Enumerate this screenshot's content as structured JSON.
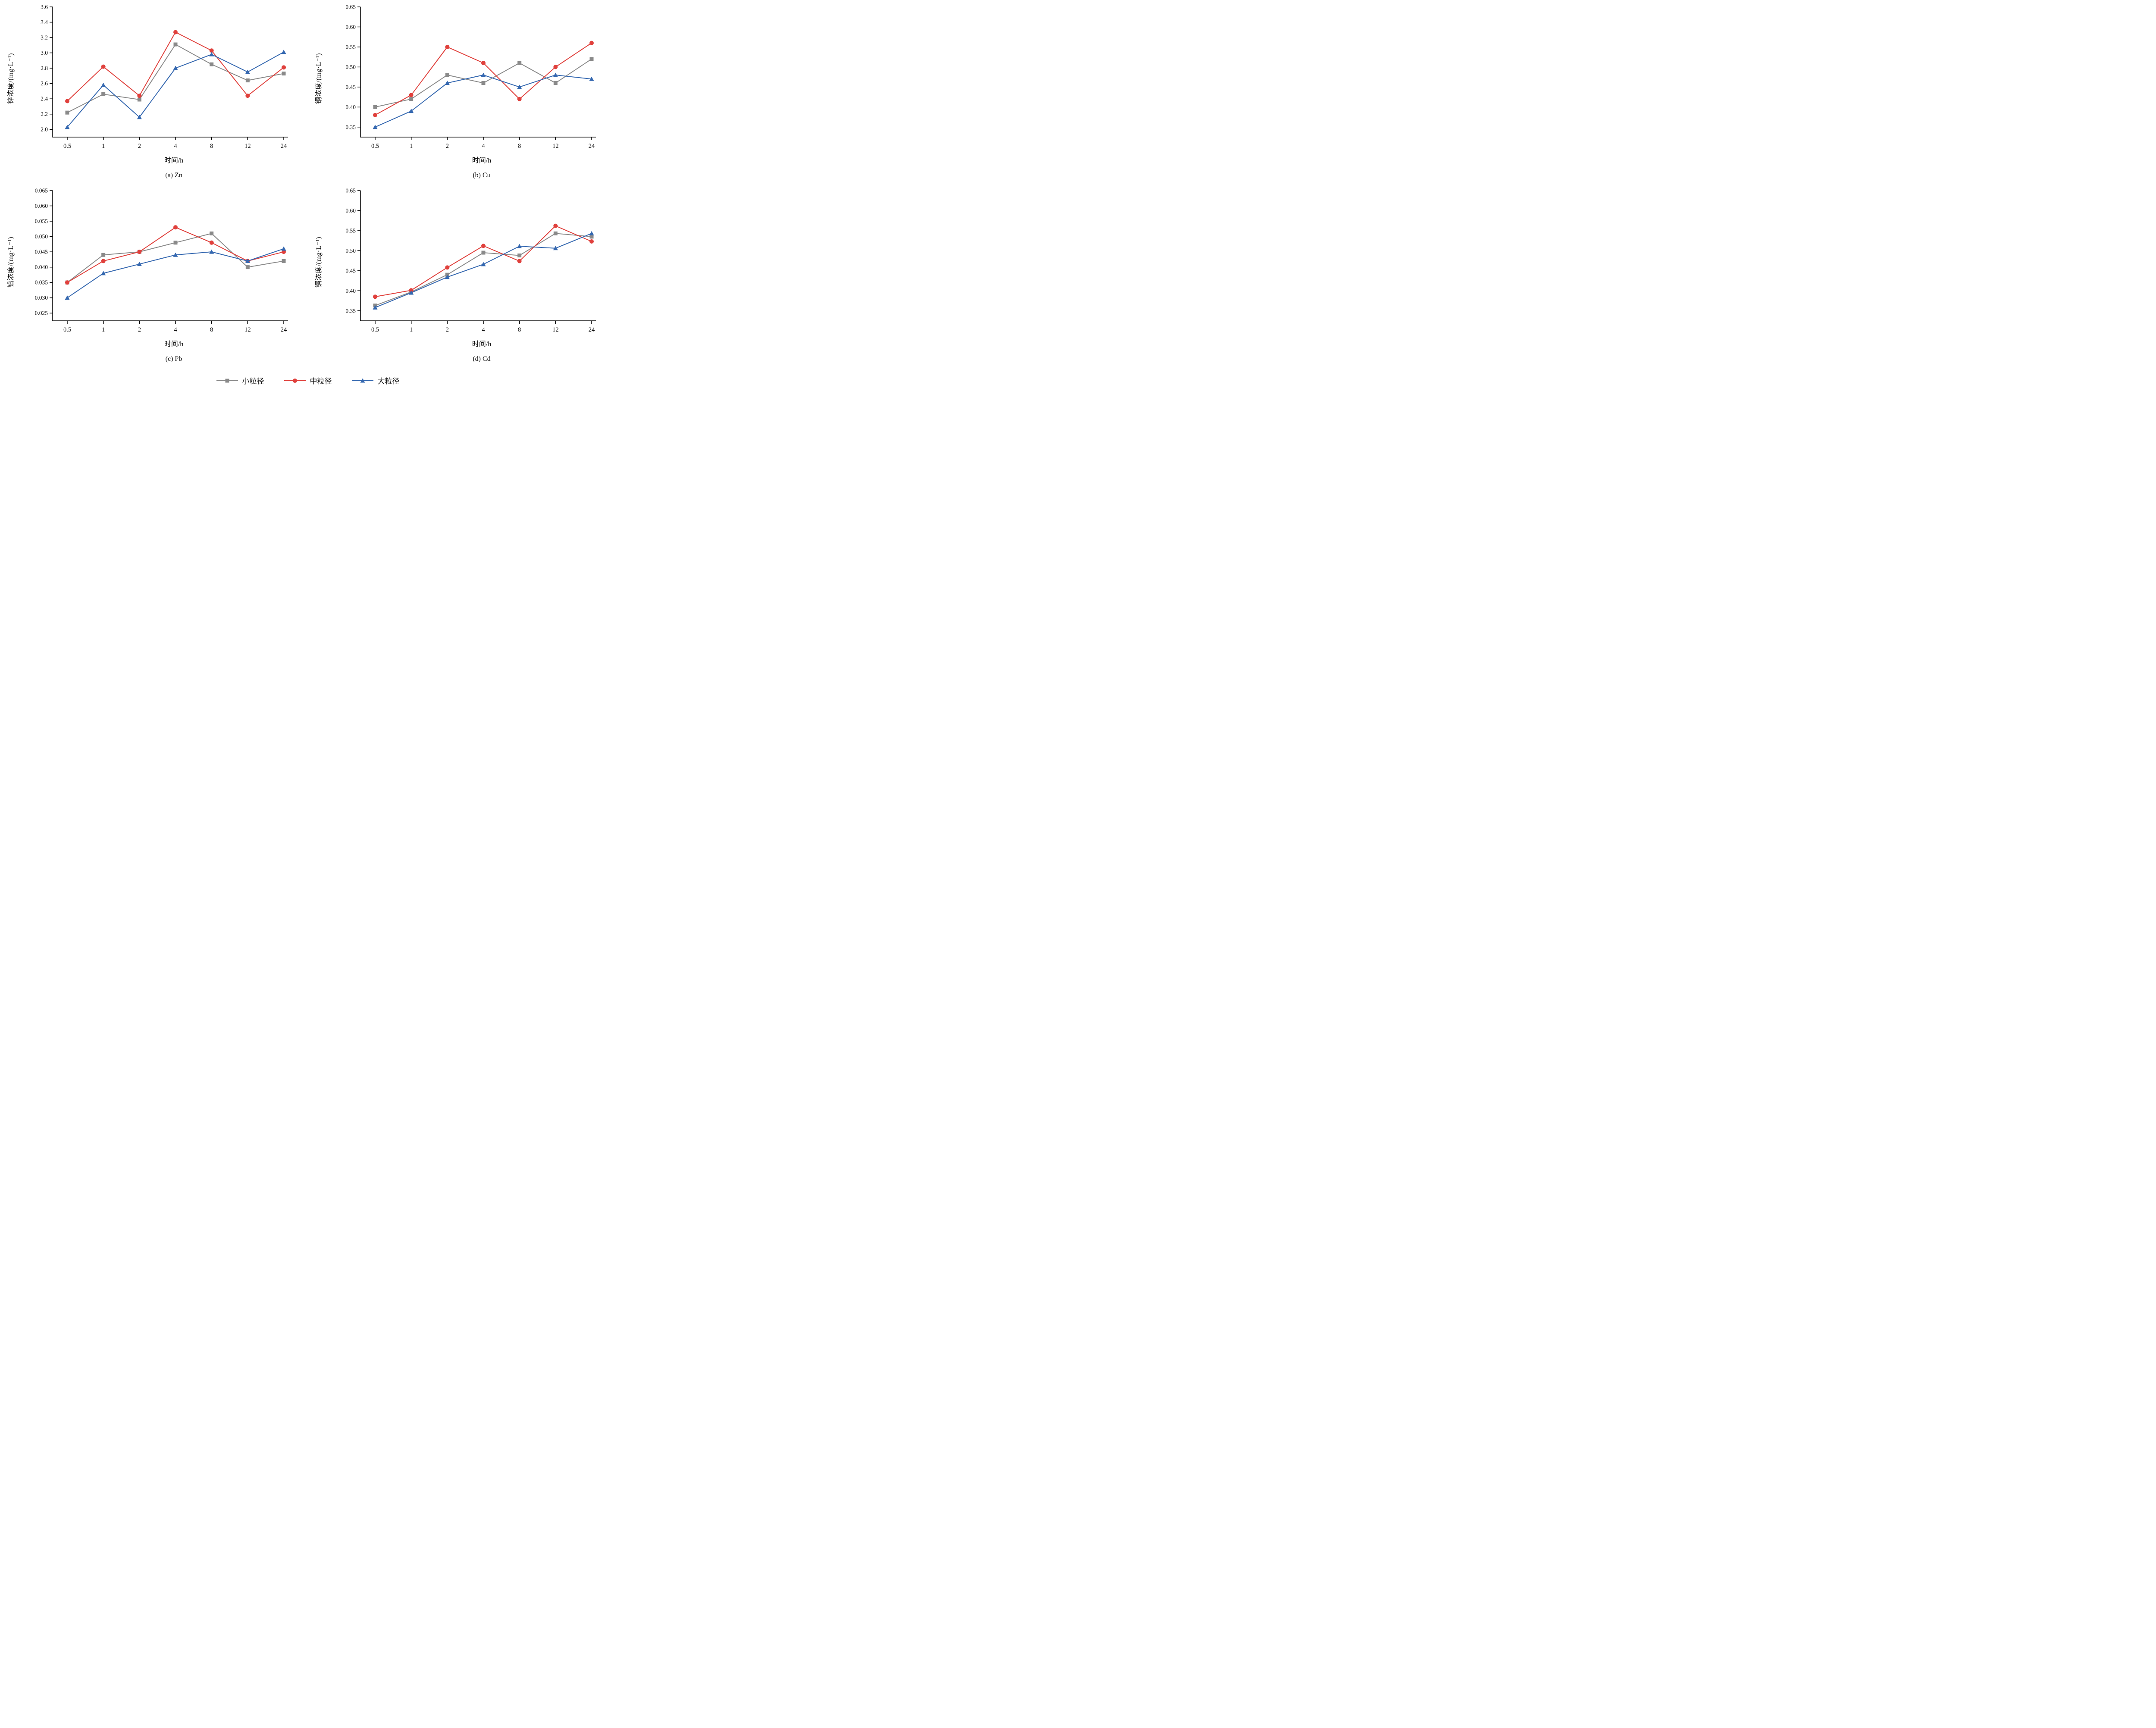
{
  "legend": {
    "items": [
      {
        "label": "小粒径",
        "color": "#8a8a8a",
        "marker": "square"
      },
      {
        "label": "中粒径",
        "color": "#e0403c",
        "marker": "circle"
      },
      {
        "label": "大粒径",
        "color": "#3568b0",
        "marker": "triangle"
      }
    ]
  },
  "chart_data": [
    {
      "type": "line",
      "caption": "(a) Zn",
      "xlabel": "时间/h",
      "ylabel": "锌浓度/(mg·L⁻¹)",
      "categories": [
        "0.5",
        "1",
        "2",
        "4",
        "8",
        "12",
        "24"
      ],
      "yticks": [
        "2.0",
        "2.2",
        "2.4",
        "2.6",
        "2.8",
        "3.0",
        "3.2",
        "3.4",
        "3.6"
      ],
      "ylim": [
        1.9,
        3.6
      ],
      "grid": false,
      "series": [
        {
          "name": "小粒径",
          "marker": "square",
          "color": "#8a8a8a",
          "values": [
            2.22,
            2.46,
            2.39,
            3.11,
            2.85,
            2.64,
            2.73
          ]
        },
        {
          "name": "中粒径",
          "marker": "circle",
          "color": "#e0403c",
          "values": [
            2.37,
            2.82,
            2.44,
            3.27,
            3.03,
            2.44,
            2.81
          ]
        },
        {
          "name": "大粒径",
          "marker": "triangle",
          "color": "#3568b0",
          "values": [
            2.03,
            2.58,
            2.16,
            2.8,
            2.98,
            2.75,
            3.01
          ]
        }
      ]
    },
    {
      "type": "line",
      "caption": "(b) Cu",
      "xlabel": "时间/h",
      "ylabel": "铜浓度/(mg·L⁻¹)",
      "categories": [
        "0.5",
        "1",
        "2",
        "4",
        "8",
        "12",
        "24"
      ],
      "yticks": [
        "0.35",
        "0.40",
        "0.45",
        "0.50",
        "0.55",
        "0.60",
        "0.65"
      ],
      "ylim": [
        0.325,
        0.65
      ],
      "grid": false,
      "series": [
        {
          "name": "小粒径",
          "marker": "square",
          "color": "#8a8a8a",
          "values": [
            0.4,
            0.42,
            0.48,
            0.46,
            0.51,
            0.46,
            0.52
          ]
        },
        {
          "name": "中粒径",
          "marker": "circle",
          "color": "#e0403c",
          "values": [
            0.38,
            0.43,
            0.55,
            0.51,
            0.42,
            0.5,
            0.56
          ]
        },
        {
          "name": "大粒径",
          "marker": "triangle",
          "color": "#3568b0",
          "values": [
            0.35,
            0.39,
            0.46,
            0.48,
            0.45,
            0.48,
            0.47
          ]
        }
      ]
    },
    {
      "type": "line",
      "caption": "(c) Pb",
      "xlabel": "时间/h",
      "ylabel": "铅浓度/(mg·L⁻¹)",
      "categories": [
        "0.5",
        "1",
        "2",
        "4",
        "8",
        "12",
        "24"
      ],
      "yticks": [
        "0.025",
        "0.030",
        "0.035",
        "0.040",
        "0.045",
        "0.050",
        "0.055",
        "0.060",
        "0.065"
      ],
      "ylim": [
        0.0225,
        0.065
      ],
      "grid": false,
      "series": [
        {
          "name": "小粒径",
          "marker": "square",
          "color": "#8a8a8a",
          "values": [
            0.035,
            0.044,
            0.045,
            0.048,
            0.051,
            0.04,
            0.042
          ]
        },
        {
          "name": "中粒径",
          "marker": "circle",
          "color": "#e0403c",
          "values": [
            0.035,
            0.042,
            0.045,
            0.053,
            0.048,
            0.042,
            0.045
          ]
        },
        {
          "name": "大粒径",
          "marker": "triangle",
          "color": "#3568b0",
          "values": [
            0.03,
            0.038,
            0.041,
            0.044,
            0.045,
            0.042,
            0.046
          ]
        }
      ]
    },
    {
      "type": "line",
      "caption": "(d) Cd",
      "xlabel": "时间/h",
      "ylabel": "镉浓度/(mg·L⁻¹)",
      "categories": [
        "0.5",
        "1",
        "2",
        "4",
        "8",
        "12",
        "24"
      ],
      "yticks": [
        "0.35",
        "0.40",
        "0.45",
        "0.50",
        "0.55",
        "0.60",
        "0.65"
      ],
      "ylim": [
        0.325,
        0.65
      ],
      "grid": false,
      "series": [
        {
          "name": "小粒径",
          "marker": "square",
          "color": "#8a8a8a",
          "values": [
            0.363,
            0.397,
            0.44,
            0.495,
            0.488,
            0.543,
            0.535
          ]
        },
        {
          "name": "中粒径",
          "marker": "circle",
          "color": "#e0403c",
          "values": [
            0.385,
            0.401,
            0.458,
            0.512,
            0.474,
            0.562,
            0.523
          ]
        },
        {
          "name": "大粒径",
          "marker": "triangle",
          "color": "#3568b0",
          "values": [
            0.358,
            0.395,
            0.434,
            0.466,
            0.511,
            0.506,
            0.543
          ]
        }
      ]
    }
  ]
}
